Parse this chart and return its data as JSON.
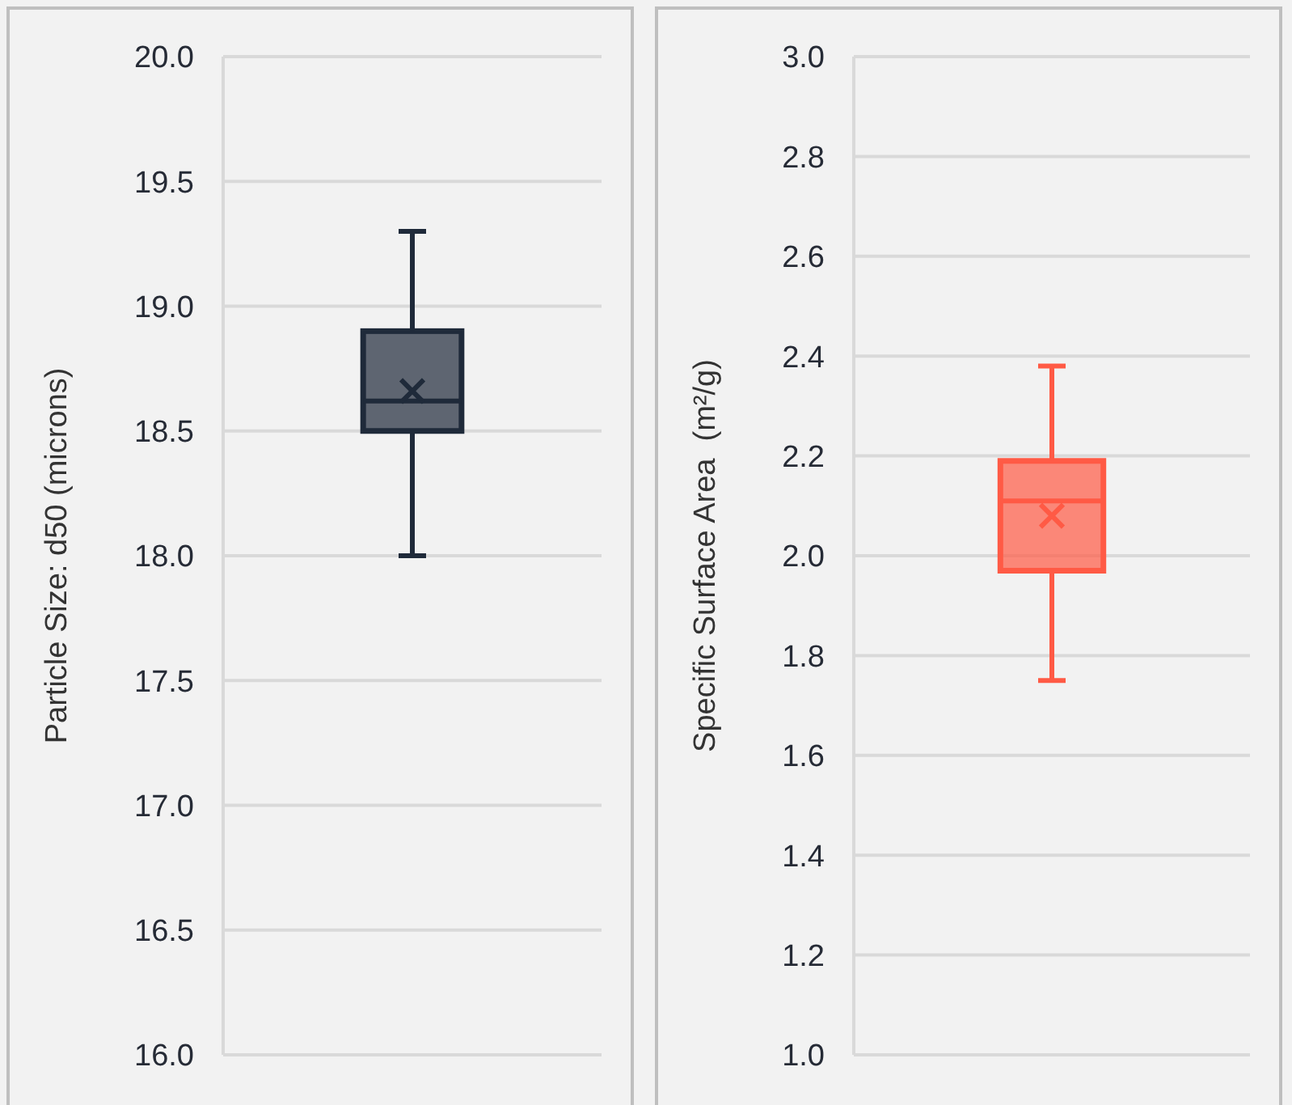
{
  "chart_data": [
    {
      "type": "box",
      "ylabel": "Particle Size: d50 (microns)",
      "categories": [
        null
      ],
      "color": "#1f2a3a",
      "boxes": [
        {
          "low": 18.0,
          "q1": 18.5,
          "median": 18.62,
          "q3": 18.9,
          "high": 19.3,
          "mean": 18.66
        }
      ],
      "ylim": [
        16.0,
        20.0
      ],
      "yticks": [
        {
          "value": 16.0,
          "label": "16.0"
        },
        {
          "value": 16.5,
          "label": "16.5"
        },
        {
          "value": 17.0,
          "label": "17.0"
        },
        {
          "value": 17.5,
          "label": "17.5"
        },
        {
          "value": 18.0,
          "label": "18.0"
        },
        {
          "value": 18.5,
          "label": "18.5"
        },
        {
          "value": 19.0,
          "label": "19.0"
        },
        {
          "value": 19.5,
          "label": "19.5"
        },
        {
          "value": 20.0,
          "label": "20.0"
        }
      ],
      "grid": "y"
    },
    {
      "type": "box",
      "ylabel": "Specific Surface Area  (m²/g)",
      "categories": [
        null
      ],
      "color": "#ff5a45",
      "boxes": [
        {
          "low": 1.75,
          "q1": 1.97,
          "median": 2.11,
          "q3": 2.19,
          "high": 2.38,
          "mean": 2.08
        }
      ],
      "ylim": [
        1.0,
        3.0
      ],
      "yticks": [
        {
          "value": 1.0,
          "label": "1.0"
        },
        {
          "value": 1.2,
          "label": "1.2"
        },
        {
          "value": 1.4,
          "label": "1.4"
        },
        {
          "value": 1.6,
          "label": "1.6"
        },
        {
          "value": 1.8,
          "label": "1.8"
        },
        {
          "value": 2.0,
          "label": "2.0"
        },
        {
          "value": 2.2,
          "label": "2.2"
        },
        {
          "value": 2.4,
          "label": "2.4"
        },
        {
          "value": 2.6,
          "label": "2.6"
        },
        {
          "value": 2.8,
          "label": "2.8"
        },
        {
          "value": 3.0,
          "label": "3.0"
        }
      ],
      "grid": "y"
    }
  ]
}
